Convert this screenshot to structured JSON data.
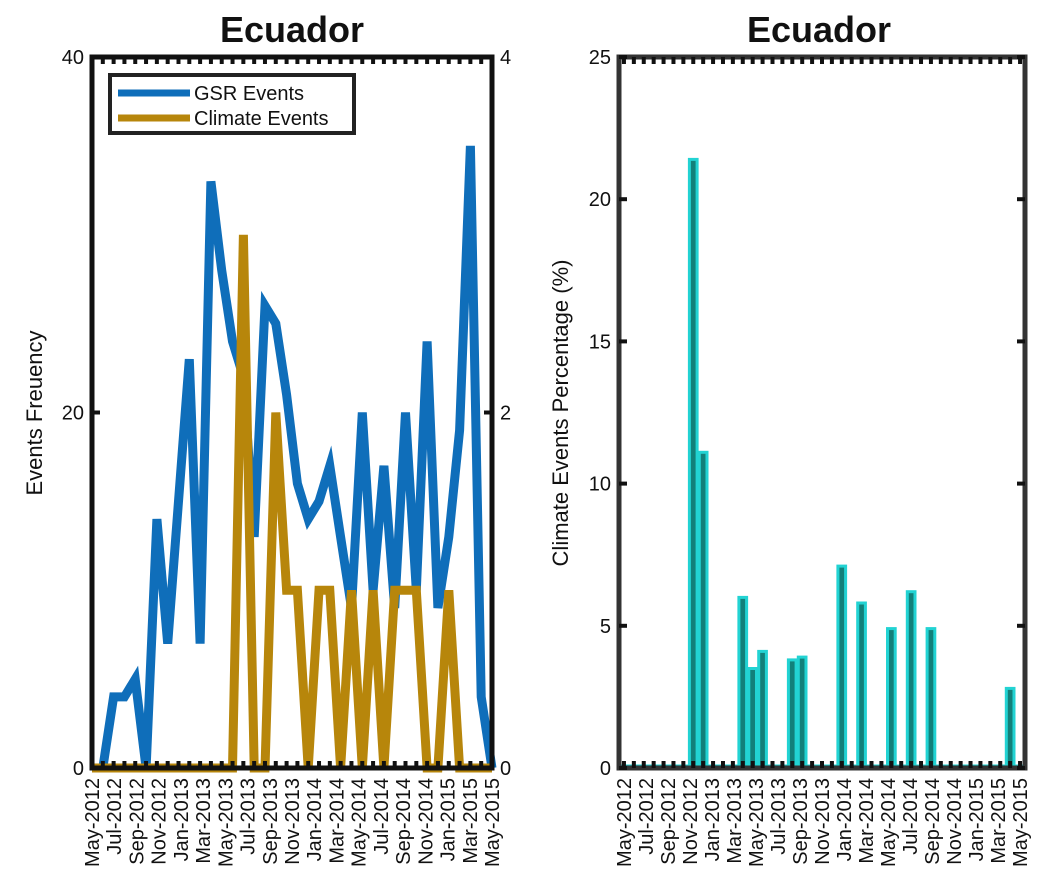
{
  "chart_data": [
    {
      "type": "line",
      "title": "Ecuador",
      "ylabel": "Events Freuency",
      "ylim": [
        0,
        40
      ],
      "y_ticks": [
        "0",
        "20",
        "40"
      ],
      "y2lim": [
        0,
        4
      ],
      "y2_ticks": [
        "0",
        "2",
        "4"
      ],
      "x_tick_labels": [
        "May-2012",
        "Jul-2012",
        "Sep-2012",
        "Nov-2012",
        "Jan-2013",
        "Mar-2013",
        "May-2013",
        "Jul-2013",
        "Sep-2013",
        "Nov-2013",
        "Jan-2014",
        "Mar-2014",
        "May-2014",
        "Jul-2014",
        "Sep-2014",
        "Nov-2014",
        "Jan-2015",
        "Mar-2015",
        "May-2015"
      ],
      "legend_position": "top-left",
      "series": [
        {
          "name": "GSR Events",
          "axis": "left",
          "color": "#0f6eba",
          "values": [
            0,
            0,
            4,
            4,
            5,
            0,
            14,
            7,
            15,
            23,
            7,
            33,
            28,
            24,
            22,
            13,
            26,
            25,
            21,
            16,
            14,
            15,
            17,
            13,
            9,
            20,
            10,
            17,
            9,
            20,
            10,
            24,
            9,
            13,
            19,
            35,
            4,
            0
          ]
        },
        {
          "name": "Climate Events",
          "axis": "right",
          "color": "#b7860b",
          "values": [
            0,
            0,
            0,
            0,
            0,
            0,
            0,
            0,
            0,
            0,
            0,
            0,
            0,
            0,
            3,
            0,
            0,
            2,
            1,
            1,
            0,
            1,
            1,
            0,
            1,
            0,
            1,
            0,
            1,
            1,
            1,
            0,
            0,
            1,
            0,
            0,
            0,
            0
          ]
        }
      ]
    },
    {
      "type": "bar",
      "title": "Ecuador",
      "ylabel": "Climate Events Percentage (%)",
      "ylim": [
        0,
        25
      ],
      "y_ticks": [
        "0",
        "5",
        "10",
        "15",
        "20",
        "25"
      ],
      "x_tick_labels": [
        "May-2012",
        "Jul-2012",
        "Sep-2012",
        "Nov-2012",
        "Jan-2013",
        "Mar-2013",
        "May-2013",
        "Jul-2013",
        "Sep-2013",
        "Nov-2013",
        "Jan-2014",
        "Mar-2014",
        "May-2014",
        "Jul-2014",
        "Sep-2014",
        "Nov-2014",
        "Jan-2015",
        "Mar-2015",
        "May-2015"
      ],
      "bar_color": "#12807a",
      "edge_color": "#22d3d3",
      "values": [
        0,
        0,
        0,
        0,
        0,
        0,
        0,
        21.4,
        11.1,
        0,
        0,
        0,
        6.0,
        3.5,
        4.1,
        0,
        0,
        3.8,
        3.9,
        0,
        0,
        0,
        7.1,
        0,
        5.8,
        0,
        0,
        4.9,
        0,
        6.2,
        0,
        4.9,
        0,
        0,
        0,
        0,
        0,
        0,
        0,
        2.8,
        0
      ]
    }
  ],
  "colors": {
    "axis": "#111111",
    "right_axis_frame": "#333333"
  }
}
